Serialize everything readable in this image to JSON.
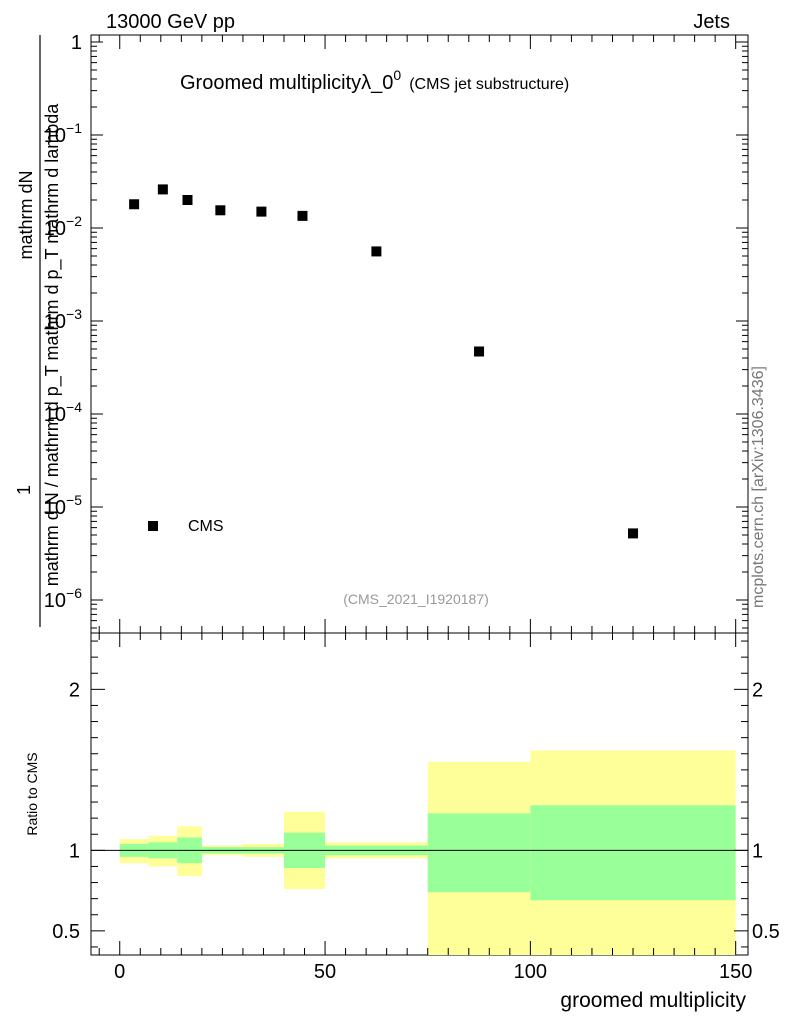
{
  "header": {
    "left": "13000 GeV pp",
    "right": "Jets"
  },
  "title": {
    "main": "Groomed multiplicity",
    "symbol": "λ_0",
    "superscript": "0",
    "sub": "(CMS jet substructure)"
  },
  "side_label": "mcplots.cern.ch [arXiv:1306.3436]",
  "analysis_id": "(CMS_2021_I1920187)",
  "upper_ylabel": {
    "numerator": "mathrm dN",
    "denominator": "mathrm d N / mathrm d p_T mathrm d p_T mathrm d lambda",
    "prefix": "1"
  },
  "legend": {
    "entries": [
      "CMS"
    ]
  },
  "ratio_ylabel": "Ratio to CMS",
  "xlabel": "groomed multiplicity",
  "colors": {
    "inner_band": "#99ff99",
    "outer_band": "#ffff99",
    "marker": "#000000"
  },
  "chart_data": [
    {
      "type": "scatter",
      "title": "Groomed multiplicity λ_0^0 (CMS jet substructure)",
      "xlabel": "groomed multiplicity",
      "ylabel": "1/N dN/dλ",
      "xlim": [
        -7,
        153
      ],
      "ylim": [
        1e-06,
        1
      ],
      "yscale": "log",
      "ytick_labels": [
        {
          "base": "10",
          "exp": "−6",
          "value": 1e-06
        },
        {
          "base": "10",
          "exp": "−5",
          "value": 1e-05
        },
        {
          "base": "10",
          "exp": "−4",
          "value": 0.0001
        },
        {
          "base": "10",
          "exp": "−3",
          "value": 0.001
        },
        {
          "base": "10",
          "exp": "−2",
          "value": 0.01
        },
        {
          "base": "10",
          "exp": "−1",
          "value": 0.1
        },
        {
          "base": "1",
          "exp": "",
          "value": 1
        }
      ],
      "series": [
        {
          "name": "CMS",
          "x": [
            3.5,
            10.5,
            16.5,
            24.5,
            34.5,
            44.5,
            62.5,
            87.5,
            125
          ],
          "y": [
            0.018,
            0.026,
            0.02,
            0.0155,
            0.015,
            0.0135,
            0.0056,
            0.00047,
            5.2e-06
          ]
        }
      ]
    },
    {
      "type": "area",
      "title": "Ratio to CMS",
      "xlabel": "groomed multiplicity",
      "ylabel": "Ratio to CMS",
      "xlim": [
        -7,
        153
      ],
      "ylim": [
        0.35,
        2.35
      ],
      "xtick_labels": [
        "0",
        "50",
        "100",
        "150"
      ],
      "xticks": [
        0,
        50,
        100,
        150
      ],
      "ytick_labels": [
        "0.5",
        "1",
        "2"
      ],
      "yticks": [
        0.5,
        1,
        2
      ],
      "reference_line": 1,
      "bins": [
        {
          "x0": 0,
          "x1": 7,
          "inner": [
            0.96,
            1.04
          ],
          "outer": [
            0.92,
            1.07
          ]
        },
        {
          "x0": 7,
          "x1": 14,
          "inner": [
            0.95,
            1.05
          ],
          "outer": [
            0.9,
            1.09
          ]
        },
        {
          "x0": 14,
          "x1": 20,
          "inner": [
            0.92,
            1.08
          ],
          "outer": [
            0.84,
            1.15
          ]
        },
        {
          "x0": 20,
          "x1": 30,
          "inner": [
            0.98,
            1.02
          ],
          "outer": [
            0.97,
            1.03
          ]
        },
        {
          "x0": 30,
          "x1": 40,
          "inner": [
            0.98,
            1.02
          ],
          "outer": [
            0.96,
            1.04
          ]
        },
        {
          "x0": 40,
          "x1": 50,
          "inner": [
            0.89,
            1.11
          ],
          "outer": [
            0.76,
            1.24
          ]
        },
        {
          "x0": 50,
          "x1": 75,
          "inner": [
            0.97,
            1.03
          ],
          "outer": [
            0.95,
            1.05
          ]
        },
        {
          "x0": 75,
          "x1": 100,
          "inner": [
            0.74,
            1.23
          ],
          "outer": [
            0.3,
            1.55
          ]
        },
        {
          "x0": 100,
          "x1": 150,
          "inner": [
            0.69,
            1.28
          ],
          "outer": [
            0.3,
            1.62
          ]
        }
      ]
    }
  ]
}
